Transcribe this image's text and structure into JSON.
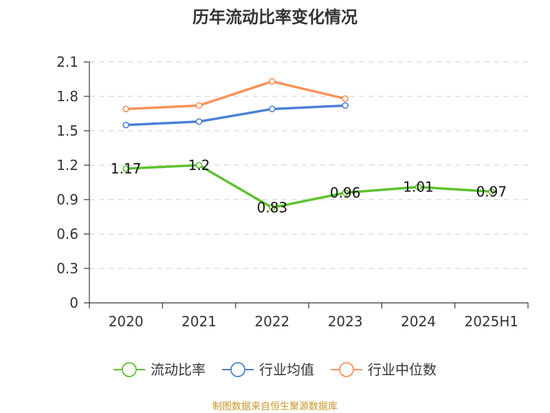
{
  "chart_data": {
    "type": "line",
    "title": "历年流动比率变化情况",
    "categories": [
      "2020",
      "2021",
      "2022",
      "2023",
      "2024",
      "2025H1"
    ],
    "y_ticks": [
      "0",
      "0.3",
      "0.6",
      "0.9",
      "1.2",
      "1.5",
      "1.8",
      "2.1"
    ],
    "ylim": [
      0,
      2.1
    ],
    "grid": true,
    "legend_position": "bottom",
    "series": [
      {
        "name": "流动比率",
        "color": "#5cc12d",
        "values": [
          1.17,
          1.2,
          0.83,
          0.96,
          1.01,
          0.97
        ],
        "labels": [
          "1.17",
          "1.2",
          "0.83",
          "0.96",
          "1.01",
          "0.97"
        ]
      },
      {
        "name": "行业均值",
        "color": "#4a7fd6",
        "values": [
          1.55,
          1.58,
          1.69,
          1.72,
          null,
          null
        ]
      },
      {
        "name": "行业中位数",
        "color": "#f8915a",
        "values": [
          1.69,
          1.72,
          1.93,
          1.78,
          null,
          null
        ]
      }
    ],
    "source": "制图数据来自恒生聚源数据库",
    "source_color": "#c8962a"
  }
}
